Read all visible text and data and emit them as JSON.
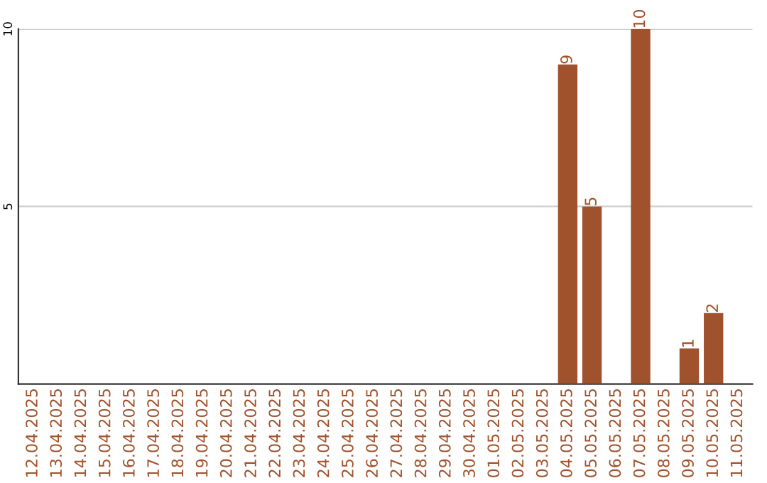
{
  "chart_data": {
    "type": "bar",
    "categories": [
      "12.04.2025",
      "13.04.2025",
      "14.04.2025",
      "15.04.2025",
      "16.04.2025",
      "17.04.2025",
      "18.04.2025",
      "19.04.2025",
      "20.04.2025",
      "21.04.2025",
      "22.04.2025",
      "23.04.2025",
      "24.04.2025",
      "25.04.2025",
      "26.04.2025",
      "27.04.2025",
      "28.04.2025",
      "29.04.2025",
      "30.04.2025",
      "01.05.2025",
      "02.05.2025",
      "03.05.2025",
      "04.05.2025",
      "05.05.2025",
      "06.05.2025",
      "07.05.2025",
      "08.05.2025",
      "09.05.2025",
      "10.05.2025",
      "11.05.2025"
    ],
    "values": [
      0,
      0,
      0,
      0,
      0,
      0,
      0,
      0,
      0,
      0,
      0,
      0,
      0,
      0,
      0,
      0,
      0,
      0,
      0,
      0,
      0,
      0,
      9,
      5,
      0,
      10,
      0,
      1,
      2,
      0
    ],
    "value_labels": [
      null,
      null,
      null,
      null,
      null,
      null,
      null,
      null,
      null,
      null,
      null,
      null,
      null,
      null,
      null,
      null,
      null,
      null,
      null,
      null,
      null,
      null,
      "9",
      "5",
      null,
      "10",
      null,
      "1",
      "2",
      null
    ],
    "color": "#a0522d",
    "ylim": [
      0,
      10
    ],
    "yticks": [
      5,
      10
    ],
    "grid": "y",
    "legend": false
  }
}
